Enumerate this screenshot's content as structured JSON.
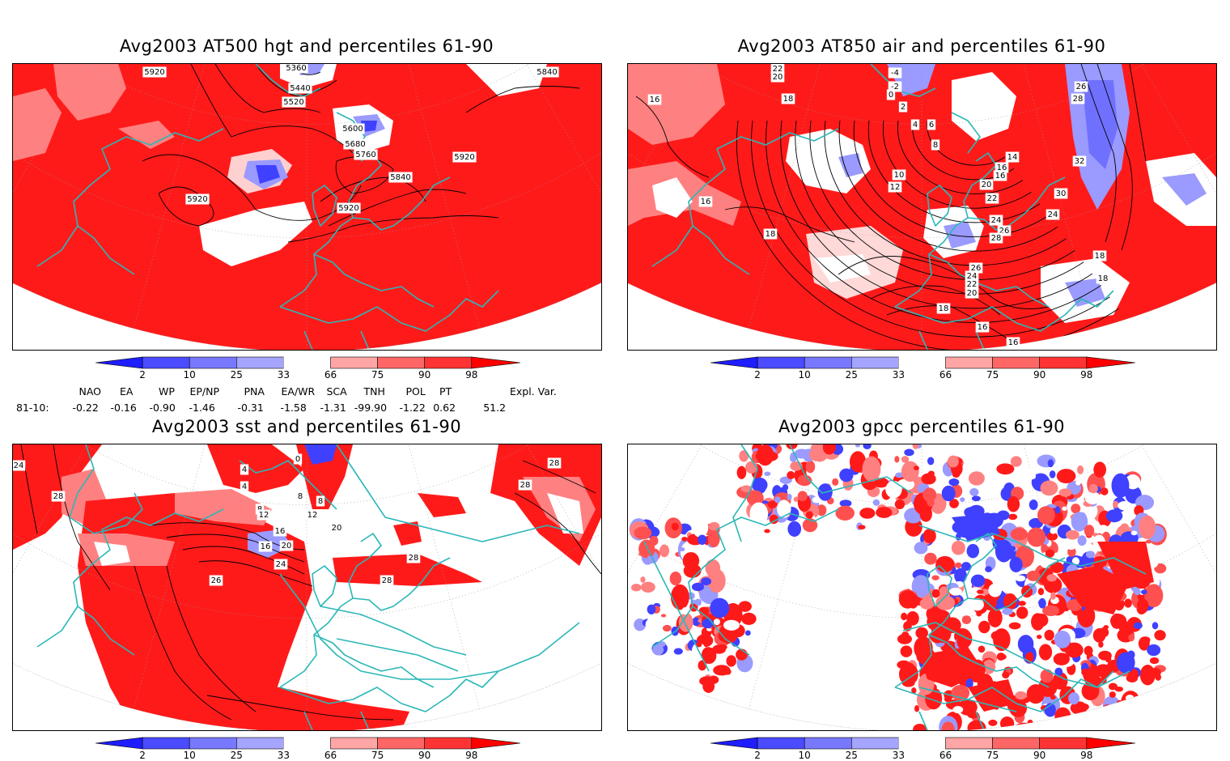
{
  "panels": [
    {
      "id": "tl",
      "title": "Avg2003 AT500 hgt and percentiles 61-90",
      "contour_labels": [
        "5920",
        "5360",
        "5440",
        "5520",
        "5600",
        "5680",
        "5760",
        "5840",
        "5920",
        "5920",
        "5920",
        "5840"
      ]
    },
    {
      "id": "tr",
      "title": "Avg2003 AT850 air and percentiles 61-90",
      "contour_labels": [
        "22",
        "20",
        "18",
        "16",
        "16",
        "-4",
        "-2",
        "0",
        "2",
        "4",
        "6",
        "8",
        "10",
        "12",
        "14",
        "16",
        "16",
        "20",
        "22",
        "24",
        "26",
        "28",
        "30",
        "32",
        "18",
        "26",
        "28",
        "24",
        "26",
        "24",
        "22",
        "20",
        "18",
        "16",
        "18",
        "18",
        "16"
      ]
    },
    {
      "id": "bl",
      "title": "Avg2003 sst and percentiles 61-90",
      "contour_labels": [
        "24",
        "28",
        "4",
        "4",
        "8",
        "8",
        "8",
        "12",
        "12",
        "16",
        "20",
        "24",
        "26",
        "28",
        "28",
        "28",
        "28",
        "0",
        "16",
        "20"
      ]
    },
    {
      "id": "br",
      "title": "Avg2003 gpcc percentiles 61-90",
      "contour_labels": []
    }
  ],
  "colorbar": {
    "ticks": [
      "2",
      "10",
      "25",
      "33",
      "66",
      "75",
      "90",
      "98"
    ],
    "colors": [
      "#1e1eff",
      "#4b4bff",
      "#7878ff",
      "#a5a5ff",
      "#ffffff",
      "#ffa5a5",
      "#ff6666",
      "#ff3333",
      "#ff0000"
    ]
  },
  "indices": {
    "headers": [
      "NAO",
      "EA",
      "WP",
      "EP/NP",
      "PNA",
      "EA/WR",
      "SCA",
      "TNH",
      "POL",
      "PT",
      "Expl. Var."
    ],
    "row_label": "81-10:",
    "values": [
      "-0.22",
      "-0.16",
      "-0.90",
      "-1.46",
      "-0.31",
      "-1.58",
      "-1.31",
      "-99.90",
      "-1.22",
      "0.62",
      "51.2"
    ]
  },
  "colors": {
    "coast": "#2bb7b7",
    "red": "#ff1a1a",
    "lightred": "#ff8080",
    "blue": "#4040ff",
    "lightblue": "#9a9aff"
  }
}
